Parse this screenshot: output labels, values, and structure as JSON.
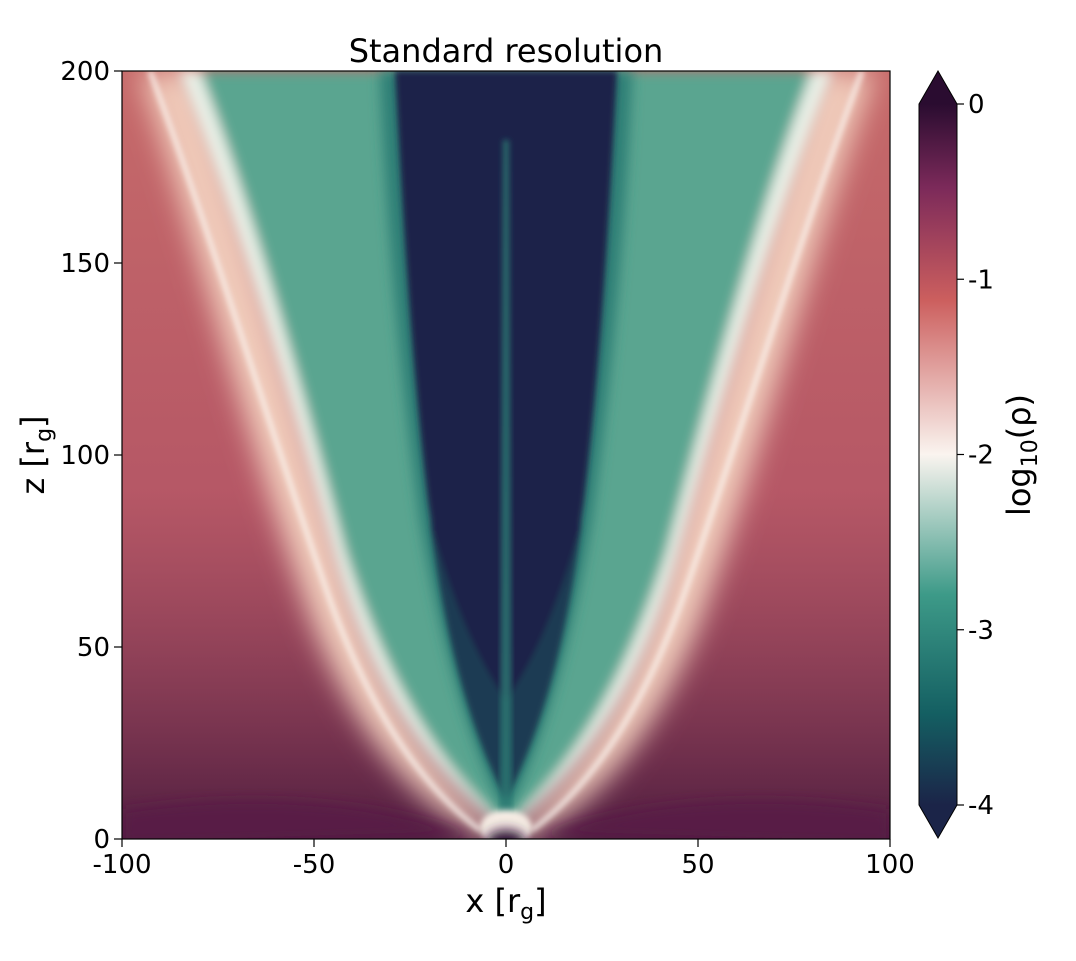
{
  "chart_data": {
    "type": "heatmap",
    "title": "Standard resolution",
    "xlabel": {
      "base": "x [r",
      "sub": "g",
      "tail": "]"
    },
    "ylabel": {
      "base": "z [r",
      "sub": "g",
      "tail": "]"
    },
    "xlim": [
      -100,
      100
    ],
    "ylim": [
      0,
      200
    ],
    "x_ticks": [
      -100,
      -50,
      0,
      50,
      100
    ],
    "x_tick_labels": [
      "-100",
      "-50",
      "0",
      "50",
      "100"
    ],
    "y_ticks": [
      0,
      50,
      100,
      150,
      200
    ],
    "y_tick_labels": [
      "0",
      "50",
      "100",
      "150",
      "200"
    ],
    "grid": false,
    "colorbar": {
      "label": {
        "base": "log",
        "sub": "10",
        "tail": "(ρ)"
      },
      "range": [
        -4,
        0
      ],
      "ticks": [
        0,
        -1,
        -2,
        -3,
        -4
      ],
      "tick_labels": [
        "0",
        "-1",
        "-2",
        "-3",
        "-4"
      ],
      "extend": "both",
      "position": "right",
      "colors": {
        "max": "#2a0c30",
        "high": "#7c2a5a",
        "upper_mid": "#cc5f5e",
        "mid": "#faf4ef",
        "lower_mid": "#3d9a88",
        "low": "#145f62",
        "min": "#1b2448"
      }
    },
    "field_description_points": [
      {
        "x": 0,
        "z": 150,
        "log_rho": -4.0
      },
      {
        "x": -30,
        "z": 150,
        "log_rho": -3.0
      },
      {
        "x": 30,
        "z": 150,
        "log_rho": -3.0
      },
      {
        "x": -65,
        "z": 150,
        "log_rho": -2.0
      },
      {
        "x": 65,
        "z": 150,
        "log_rho": -2.0
      },
      {
        "x": -90,
        "z": 150,
        "log_rho": -1.5
      },
      {
        "x": 90,
        "z": 150,
        "log_rho": -1.5
      },
      {
        "x": -80,
        "z": 20,
        "log_rho": -0.6
      },
      {
        "x": 80,
        "z": 20,
        "log_rho": -0.6
      },
      {
        "x": 0,
        "z": 5,
        "log_rho": -1.8
      }
    ]
  }
}
